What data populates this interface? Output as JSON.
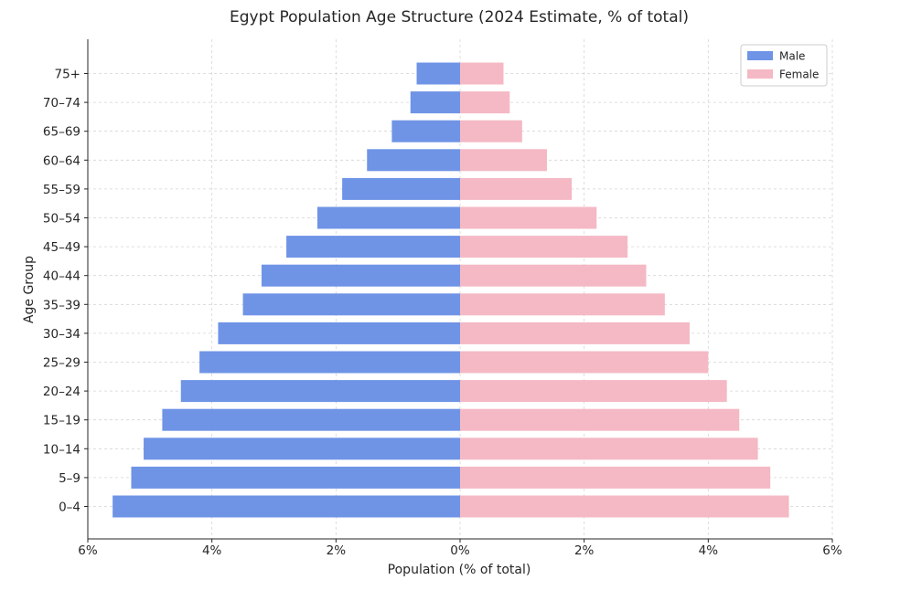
{
  "chart_data": {
    "type": "bar",
    "orientation": "horizontal",
    "title": "Egypt Population Age Structure (2024 Estimate, % of total)",
    "xlabel": "Population (% of total)",
    "ylabel": "Age Group",
    "xlim": [
      -6,
      6
    ],
    "x_tick_values": [
      -6,
      -4,
      -2,
      0,
      2,
      4,
      6
    ],
    "x_tick_labels": [
      "6%",
      "4%",
      "2%",
      "0%",
      "2%",
      "4%",
      "6%"
    ],
    "categories": [
      "0–4",
      "5–9",
      "10–14",
      "15–19",
      "20–24",
      "25–29",
      "30–34",
      "35–39",
      "40–44",
      "45–49",
      "50–54",
      "55–59",
      "60–64",
      "65–69",
      "70–74",
      "75+"
    ],
    "series": [
      {
        "name": "Male",
        "color": "#6f94e6",
        "values": [
          -5.6,
          -5.3,
          -5.1,
          -4.8,
          -4.5,
          -4.2,
          -3.9,
          -3.5,
          -3.2,
          -2.8,
          -2.3,
          -1.9,
          -1.5,
          -1.1,
          -0.8,
          -0.7
        ]
      },
      {
        "name": "Female",
        "color": "#f4b9c4",
        "values": [
          5.3,
          5.0,
          4.8,
          4.5,
          4.3,
          4.0,
          3.7,
          3.3,
          3.0,
          2.7,
          2.2,
          1.8,
          1.4,
          1.0,
          0.8,
          0.7
        ]
      }
    ],
    "grid": true,
    "legend_position": "upper-right"
  }
}
